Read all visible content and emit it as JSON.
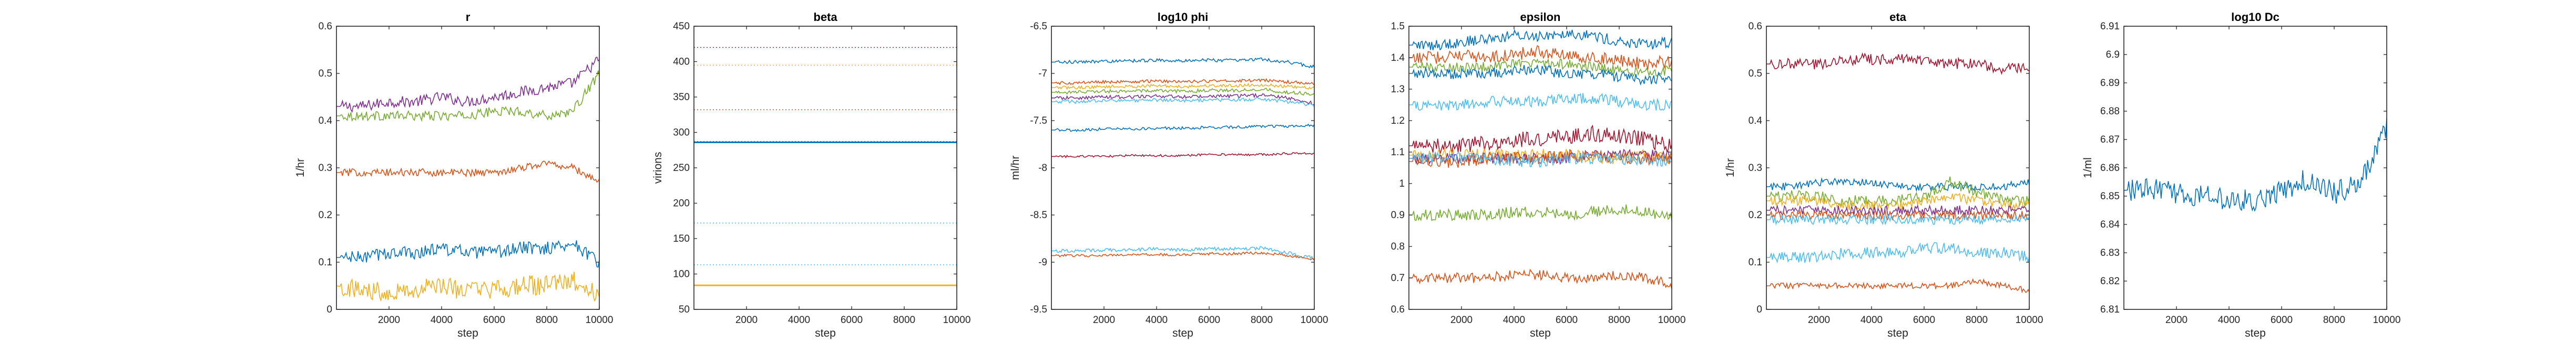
{
  "figure": {
    "background": "#ffffff"
  },
  "chart_data": [
    {
      "type": "line",
      "title": "r",
      "xlabel": "step",
      "ylabel": "1/hr",
      "xlim": [
        0,
        10000
      ],
      "ylim": [
        0,
        0.6
      ],
      "xticks": [
        2000,
        4000,
        6000,
        8000,
        10000
      ],
      "yticks": [
        0,
        0.1,
        0.2,
        0.3,
        0.4,
        0.5,
        0.6
      ],
      "ytick_labels": [
        "0",
        "0.1",
        "0.2",
        "0.3",
        "0.4",
        "0.5",
        "0.6"
      ],
      "grid": false,
      "series": [
        {
          "color": "#7E2F8E",
          "values": [
            0.43,
            0.43,
            0.44,
            0.44,
            0.45,
            0.44,
            0.45,
            0.46,
            0.47,
            0.48,
            0.53
          ],
          "noise": 0.012,
          "solid": true
        },
        {
          "color": "#77AC30",
          "values": [
            0.41,
            0.41,
            0.41,
            0.41,
            0.41,
            0.41,
            0.42,
            0.42,
            0.41,
            0.42,
            0.5
          ],
          "noise": 0.01,
          "solid": true
        },
        {
          "color": "#D95319",
          "values": [
            0.29,
            0.29,
            0.29,
            0.29,
            0.29,
            0.29,
            0.29,
            0.3,
            0.31,
            0.3,
            0.27
          ],
          "noise": 0.008,
          "solid": true
        },
        {
          "color": "#0072BD",
          "values": [
            0.11,
            0.11,
            0.12,
            0.12,
            0.13,
            0.12,
            0.12,
            0.13,
            0.13,
            0.14,
            0.1
          ],
          "noise": 0.014,
          "solid": true
        },
        {
          "color": "#EDB120",
          "values": [
            0.05,
            0.04,
            0.04,
            0.04,
            0.05,
            0.04,
            0.04,
            0.05,
            0.05,
            0.06,
            0.03
          ],
          "noise": 0.022,
          "solid": true
        }
      ]
    },
    {
      "type": "line",
      "title": "beta",
      "xlabel": "step",
      "ylabel": "virions",
      "xlim": [
        0,
        10000
      ],
      "ylim": [
        50,
        450
      ],
      "xticks": [
        2000,
        4000,
        6000,
        8000,
        10000
      ],
      "yticks": [
        50,
        100,
        150,
        200,
        250,
        300,
        350,
        400,
        450
      ],
      "ytick_labels": [
        "50",
        "100",
        "150",
        "200",
        "250",
        "300",
        "350",
        "400",
        "450"
      ],
      "grid": false,
      "series": [
        {
          "color": "#A2142F",
          "values": [
            420,
            420
          ],
          "noise": 0,
          "solid": false
        },
        {
          "color": "#EDB120",
          "values": [
            395,
            395
          ],
          "noise": 0,
          "solid": false
        },
        {
          "color": "#D95319",
          "values": [
            332,
            332
          ],
          "noise": 0,
          "solid": false
        },
        {
          "color": "#7E2F8E",
          "values": [
            287,
            287
          ],
          "noise": 0,
          "solid": false
        },
        {
          "color": "#0072BD",
          "values": [
            286,
            286
          ],
          "noise": 0,
          "solid": true
        },
        {
          "color": "#4DBEEE",
          "values": [
            172,
            172
          ],
          "noise": 0,
          "solid": false
        },
        {
          "color": "#4DBEEE",
          "values": [
            113,
            113
          ],
          "noise": 0,
          "solid": false
        },
        {
          "color": "#EDB120",
          "values": [
            84,
            84
          ],
          "noise": 0,
          "solid": true
        }
      ]
    },
    {
      "type": "line",
      "title": "log10 phi",
      "xlabel": "step",
      "ylabel": "ml/hr",
      "xlim": [
        0,
        10000
      ],
      "ylim": [
        -9.5,
        -6.5
      ],
      "xticks": [
        2000,
        4000,
        6000,
        8000,
        10000
      ],
      "yticks": [
        -9.5,
        -9,
        -8.5,
        -8,
        -7.5,
        -7,
        -6.5
      ],
      "ytick_labels": [
        "-9.5",
        "-9",
        "-8.5",
        "-8",
        "-7.5",
        "-7",
        "-6.5"
      ],
      "grid": false,
      "series": [
        {
          "color": "#0072BD",
          "values": [
            -6.88,
            -6.88,
            -6.87,
            -6.87,
            -6.86,
            -6.87,
            -6.86,
            -6.86,
            -6.85,
            -6.88,
            -6.93
          ],
          "noise": 0.018,
          "solid": true
        },
        {
          "color": "#D95319",
          "values": [
            -7.1,
            -7.1,
            -7.09,
            -7.09,
            -7.08,
            -7.09,
            -7.08,
            -7.08,
            -7.07,
            -7.09,
            -7.11
          ],
          "noise": 0.016,
          "solid": true
        },
        {
          "color": "#EDB120",
          "values": [
            -7.15,
            -7.15,
            -7.14,
            -7.14,
            -7.13,
            -7.14,
            -7.13,
            -7.13,
            -7.12,
            -7.14,
            -7.16
          ],
          "noise": 0.016,
          "solid": true
        },
        {
          "color": "#77AC30",
          "values": [
            -7.2,
            -7.2,
            -7.19,
            -7.19,
            -7.18,
            -7.19,
            -7.18,
            -7.18,
            -7.17,
            -7.2,
            -7.22
          ],
          "noise": 0.018,
          "solid": true
        },
        {
          "color": "#7E2F8E",
          "values": [
            -7.26,
            -7.26,
            -7.25,
            -7.25,
            -7.24,
            -7.25,
            -7.24,
            -7.24,
            -7.23,
            -7.26,
            -7.32
          ],
          "noise": 0.018,
          "solid": true
        },
        {
          "color": "#4DBEEE",
          "values": [
            -7.3,
            -7.3,
            -7.29,
            -7.29,
            -7.28,
            -7.29,
            -7.28,
            -7.28,
            -7.27,
            -7.3,
            -7.34
          ],
          "noise": 0.018,
          "solid": true
        },
        {
          "color": "#0072BD",
          "values": [
            -7.6,
            -7.6,
            -7.59,
            -7.59,
            -7.58,
            -7.58,
            -7.57,
            -7.57,
            -7.56,
            -7.56,
            -7.55
          ],
          "noise": 0.015,
          "solid": true
        },
        {
          "color": "#A2142F",
          "values": [
            -7.88,
            -7.88,
            -7.88,
            -7.87,
            -7.87,
            -7.87,
            -7.86,
            -7.86,
            -7.86,
            -7.85,
            -7.85
          ],
          "noise": 0.012,
          "solid": true
        },
        {
          "color": "#4DBEEE",
          "values": [
            -8.88,
            -8.88,
            -8.87,
            -8.87,
            -8.86,
            -8.87,
            -8.86,
            -8.86,
            -8.85,
            -8.9,
            -8.96
          ],
          "noise": 0.018,
          "solid": true
        },
        {
          "color": "#D95319",
          "values": [
            -8.93,
            -8.93,
            -8.93,
            -8.92,
            -8.92,
            -8.92,
            -8.91,
            -8.91,
            -8.9,
            -8.93,
            -8.97
          ],
          "noise": 0.014,
          "solid": true
        }
      ]
    },
    {
      "type": "line",
      "title": "epsilon",
      "xlabel": "step",
      "ylabel": "",
      "xlim": [
        0,
        10000
      ],
      "ylim": [
        0.6,
        1.5
      ],
      "xticks": [
        2000,
        4000,
        6000,
        8000,
        10000
      ],
      "yticks": [
        0.6,
        0.7,
        0.8,
        0.9,
        1,
        1.1,
        1.2,
        1.3,
        1.4,
        1.5
      ],
      "ytick_labels": [
        "0.6",
        "0.7",
        "0.8",
        "0.9",
        "1",
        "1.1",
        "1.2",
        "1.3",
        "1.4",
        "1.5"
      ],
      "grid": false,
      "series": [
        {
          "color": "#0072BD",
          "values": [
            1.44,
            1.44,
            1.45,
            1.46,
            1.47,
            1.47,
            1.48,
            1.47,
            1.45,
            1.44,
            1.45
          ],
          "noise": 0.018,
          "solid": true
        },
        {
          "color": "#D95319",
          "values": [
            1.4,
            1.4,
            1.41,
            1.4,
            1.41,
            1.42,
            1.41,
            1.4,
            1.39,
            1.38,
            1.39
          ],
          "noise": 0.02,
          "solid": true
        },
        {
          "color": "#77AC30",
          "values": [
            1.37,
            1.37,
            1.37,
            1.37,
            1.38,
            1.38,
            1.38,
            1.37,
            1.36,
            1.35,
            1.36
          ],
          "noise": 0.016,
          "solid": true
        },
        {
          "color": "#0072BD",
          "values": [
            1.35,
            1.35,
            1.35,
            1.35,
            1.36,
            1.36,
            1.35,
            1.35,
            1.34,
            1.33,
            1.34
          ],
          "noise": 0.018,
          "solid": true
        },
        {
          "color": "#4DBEEE",
          "values": [
            1.25,
            1.25,
            1.25,
            1.26,
            1.26,
            1.26,
            1.27,
            1.27,
            1.26,
            1.25,
            1.25
          ],
          "noise": 0.018,
          "solid": true
        },
        {
          "color": "#A2142F",
          "values": [
            1.12,
            1.12,
            1.12,
            1.13,
            1.14,
            1.14,
            1.15,
            1.16,
            1.15,
            1.14,
            1.12
          ],
          "noise": 0.025,
          "solid": true
        },
        {
          "color": "#EDB120",
          "values": [
            1.09,
            1.09,
            1.09,
            1.09,
            1.09,
            1.09,
            1.09,
            1.08,
            1.08,
            1.09,
            1.08
          ],
          "noise": 0.02,
          "solid": true
        },
        {
          "color": "#7E2F8E",
          "values": [
            1.08,
            1.08,
            1.08,
            1.08,
            1.08,
            1.08,
            1.08,
            1.09,
            1.09,
            1.09,
            1.09
          ],
          "noise": 0.018,
          "solid": true
        },
        {
          "color": "#D95319",
          "values": [
            1.07,
            1.07,
            1.07,
            1.08,
            1.08,
            1.08,
            1.09,
            1.09,
            1.08,
            1.08,
            1.08
          ],
          "noise": 0.02,
          "solid": true
        },
        {
          "color": "#4DBEEE",
          "values": [
            1.08,
            1.08,
            1.08,
            1.08,
            1.07,
            1.07,
            1.08,
            1.08,
            1.08,
            1.07,
            1.07
          ],
          "noise": 0.018,
          "solid": true
        },
        {
          "color": "#77AC30",
          "values": [
            0.9,
            0.9,
            0.9,
            0.9,
            0.91,
            0.91,
            0.9,
            0.91,
            0.92,
            0.91,
            0.89
          ],
          "noise": 0.018,
          "solid": true
        },
        {
          "color": "#D95319",
          "values": [
            0.7,
            0.7,
            0.7,
            0.7,
            0.71,
            0.71,
            0.7,
            0.7,
            0.71,
            0.7,
            0.68
          ],
          "noise": 0.016,
          "solid": true
        }
      ]
    },
    {
      "type": "line",
      "title": "eta",
      "xlabel": "step",
      "ylabel": "1/hr",
      "xlim": [
        0,
        10000
      ],
      "ylim": [
        0,
        0.6
      ],
      "xticks": [
        2000,
        4000,
        6000,
        8000,
        10000
      ],
      "yticks": [
        0,
        0.1,
        0.2,
        0.3,
        0.4,
        0.5,
        0.6
      ],
      "ytick_labels": [
        "0",
        "0.1",
        "0.2",
        "0.3",
        "0.4",
        "0.5",
        "0.6"
      ],
      "grid": false,
      "series": [
        {
          "color": "#A2142F",
          "values": [
            0.52,
            0.52,
            0.52,
            0.53,
            0.53,
            0.53,
            0.53,
            0.52,
            0.52,
            0.51,
            0.51
          ],
          "noise": 0.012,
          "solid": true
        },
        {
          "color": "#0072BD",
          "values": [
            0.26,
            0.26,
            0.27,
            0.27,
            0.27,
            0.26,
            0.26,
            0.26,
            0.26,
            0.26,
            0.27
          ],
          "noise": 0.008,
          "solid": true
        },
        {
          "color": "#77AC30",
          "values": [
            0.24,
            0.24,
            0.24,
            0.23,
            0.23,
            0.23,
            0.24,
            0.27,
            0.25,
            0.23,
            0.23
          ],
          "noise": 0.012,
          "solid": true
        },
        {
          "color": "#EDB120",
          "values": [
            0.23,
            0.23,
            0.23,
            0.22,
            0.22,
            0.22,
            0.23,
            0.24,
            0.23,
            0.22,
            0.22
          ],
          "noise": 0.01,
          "solid": true
        },
        {
          "color": "#7E2F8E",
          "values": [
            0.21,
            0.21,
            0.21,
            0.21,
            0.21,
            0.21,
            0.21,
            0.21,
            0.21,
            0.21,
            0.21
          ],
          "noise": 0.01,
          "solid": true
        },
        {
          "color": "#D95319",
          "values": [
            0.2,
            0.2,
            0.2,
            0.2,
            0.2,
            0.2,
            0.2,
            0.2,
            0.2,
            0.2,
            0.2
          ],
          "noise": 0.01,
          "solid": true
        },
        {
          "color": "#4DBEEE",
          "values": [
            0.19,
            0.19,
            0.19,
            0.19,
            0.19,
            0.19,
            0.19,
            0.19,
            0.19,
            0.19,
            0.19
          ],
          "noise": 0.01,
          "solid": true
        },
        {
          "color": "#4DBEEE",
          "values": [
            0.11,
            0.11,
            0.11,
            0.12,
            0.12,
            0.12,
            0.13,
            0.13,
            0.12,
            0.12,
            0.11
          ],
          "noise": 0.012,
          "solid": true
        },
        {
          "color": "#D95319",
          "values": [
            0.05,
            0.05,
            0.05,
            0.05,
            0.05,
            0.05,
            0.05,
            0.05,
            0.06,
            0.05,
            0.04
          ],
          "noise": 0.006,
          "solid": true
        }
      ]
    },
    {
      "type": "line",
      "title": "log10 Dc",
      "xlabel": "step",
      "ylabel": "1/ml",
      "xlim": [
        0,
        10000
      ],
      "ylim": [
        6.81,
        6.91
      ],
      "xticks": [
        2000,
        4000,
        6000,
        8000,
        10000
      ],
      "yticks": [
        6.81,
        6.82,
        6.83,
        6.84,
        6.85,
        6.86,
        6.87,
        6.88,
        6.89,
        6.9,
        6.91
      ],
      "ytick_labels": [
        "6.81",
        "6.82",
        "6.83",
        "6.84",
        "6.85",
        "6.86",
        "6.87",
        "6.88",
        "6.89",
        "6.9",
        "6.91"
      ],
      "grid": false,
      "series": [
        {
          "color": "#0072BD",
          "values": [
            6.852,
            6.853,
            6.851,
            6.85,
            6.849,
            6.848,
            6.852,
            6.856,
            6.851,
            6.855,
            6.875
          ],
          "noise": 0.004,
          "solid": true
        }
      ]
    }
  ]
}
